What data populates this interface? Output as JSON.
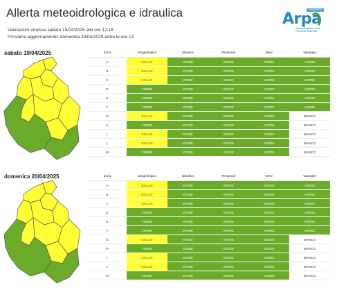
{
  "title": "Allerta meteoidrologica e idraulica",
  "issued": "Valutazioni emesse sabato 19/04/2025 alle ore 12:18",
  "next_update": "Prossimo aggiornamento: domenica 20/04/2025 entro le ore 13",
  "logo": {
    "brand": "Arpa",
    "badge": "PIEMONTE",
    "tagline": "Agenzia Regionale per la Protezione Ambientale"
  },
  "colors": {
    "verde": "#6aab2a",
    "giallo": "#ffff33",
    "bianco": "#ffffff"
  },
  "headers": [
    "Zona",
    "Idrogeologica",
    "Idraulica",
    "Temporali",
    "Neve",
    "Valanghe"
  ],
  "days": [
    {
      "label": "sabato 19/04/2025",
      "rows": [
        [
          "A",
          "GIALLO",
          "VERDE",
          "VERDE",
          "VERDE",
          "VERDE"
        ],
        [
          "B",
          "GIALLO",
          "VERDE",
          "VERDE",
          "VERDE",
          "VERDE"
        ],
        [
          "C",
          "GIALLO",
          "VERDE",
          "VERDE",
          "VERDE",
          "VERDE"
        ],
        [
          "D",
          "VERDE",
          "VERDE",
          "VERDE",
          "VERDE",
          "VERDE"
        ],
        [
          "E",
          "VERDE",
          "VERDE",
          "VERDE",
          "VERDE",
          "VERDE"
        ],
        [
          "F",
          "VERDE",
          "VERDE",
          "VERDE",
          "VERDE",
          "VERDE"
        ],
        [
          "G",
          "GIALLO",
          "VERDE",
          "VERDE",
          "VERDE",
          "BIANCO"
        ],
        [
          "H",
          "VERDE",
          "VERDE",
          "VERDE",
          "VERDE",
          "BIANCO"
        ],
        [
          "I",
          "GIALLO",
          "VERDE",
          "VERDE",
          "VERDE",
          "BIANCO"
        ],
        [
          "L",
          "GIALLO",
          "VERDE",
          "VERDE",
          "VERDE",
          "BIANCO"
        ],
        [
          "M",
          "VERDE",
          "VERDE",
          "VERDE",
          "VERDE",
          "BIANCO"
        ]
      ]
    },
    {
      "label": "domenica 20/04/2025",
      "rows": [
        [
          "A",
          "GIALLO",
          "VERDE",
          "VERDE",
          "VERDE",
          "VERDE"
        ],
        [
          "B",
          "GIALLO",
          "VERDE",
          "VERDE",
          "VERDE",
          "VERDE"
        ],
        [
          "C",
          "GIALLO",
          "VERDE",
          "VERDE",
          "VERDE",
          "VERDE"
        ],
        [
          "D",
          "VERDE",
          "VERDE",
          "VERDE",
          "VERDE",
          "VERDE"
        ],
        [
          "E",
          "VERDE",
          "VERDE",
          "VERDE",
          "VERDE",
          "VERDE"
        ],
        [
          "F",
          "VERDE",
          "VERDE",
          "VERDE",
          "VERDE",
          "VERDE"
        ],
        [
          "G",
          "GIALLO",
          "VERDE",
          "VERDE",
          "VERDE",
          "BIANCO"
        ],
        [
          "H",
          "VERDE",
          "VERDE",
          "VERDE",
          "VERDE",
          "BIANCO"
        ],
        [
          "I",
          "GIALLO",
          "VERDE",
          "VERDE",
          "VERDE",
          "BIANCO"
        ],
        [
          "L",
          "GIALLO",
          "VERDE",
          "VERDE",
          "VERDE",
          "BIANCO"
        ],
        [
          "M",
          "VERDE",
          "VERDE",
          "VERDE",
          "VERDE",
          "BIANCO"
        ]
      ]
    }
  ]
}
